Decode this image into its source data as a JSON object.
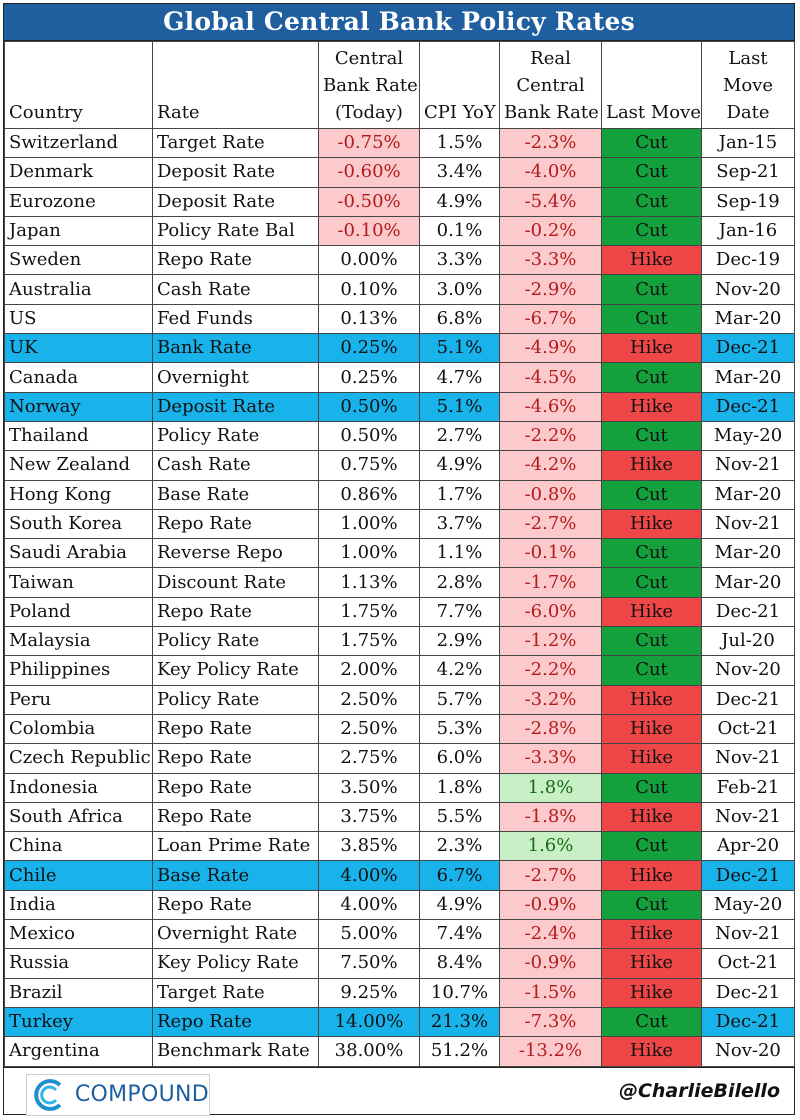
{
  "title": "Global Central Bank Policy Rates",
  "headers": {
    "country": "Country",
    "rate": "Rate",
    "cb_rate": [
      "Central",
      "Bank Rate",
      "(Today)"
    ],
    "cpi": "CPI YoY",
    "real": [
      "Real",
      "Central",
      "Bank Rate"
    ],
    "last_move": "Last Move",
    "date": [
      "Last",
      "Move",
      "Date"
    ]
  },
  "colors": {
    "title_bg": "#1f5fa0",
    "highlight": "#19b3ec",
    "cut": "#14a03d",
    "hike": "#ef4747",
    "negative_bg": "#fcc9cc",
    "positive_bg": "#c9efc7"
  },
  "rows": [
    {
      "country": "Switzerland",
      "rate": "Target Rate",
      "cb_rate": "-0.75%",
      "cpi": "1.5%",
      "real": "-2.3%",
      "move": "Cut",
      "date": "Jan-15"
    },
    {
      "country": "Denmark",
      "rate": "Deposit Rate",
      "cb_rate": "-0.60%",
      "cpi": "3.4%",
      "real": "-4.0%",
      "move": "Cut",
      "date": "Sep-21"
    },
    {
      "country": "Eurozone",
      "rate": "Deposit Rate",
      "cb_rate": "-0.50%",
      "cpi": "4.9%",
      "real": "-5.4%",
      "move": "Cut",
      "date": "Sep-19"
    },
    {
      "country": "Japan",
      "rate": "Policy Rate Bal",
      "cb_rate": "-0.10%",
      "cpi": "0.1%",
      "real": "-0.2%",
      "move": "Cut",
      "date": "Jan-16"
    },
    {
      "country": "Sweden",
      "rate": "Repo Rate",
      "cb_rate": "0.00%",
      "cpi": "3.3%",
      "real": "-3.3%",
      "move": "Hike",
      "date": "Dec-19"
    },
    {
      "country": "Australia",
      "rate": "Cash Rate",
      "cb_rate": "0.10%",
      "cpi": "3.0%",
      "real": "-2.9%",
      "move": "Cut",
      "date": "Nov-20"
    },
    {
      "country": "US",
      "rate": "Fed Funds",
      "cb_rate": "0.13%",
      "cpi": "6.8%",
      "real": "-6.7%",
      "move": "Cut",
      "date": "Mar-20"
    },
    {
      "country": "UK",
      "rate": "Bank Rate",
      "cb_rate": "0.25%",
      "cpi": "5.1%",
      "real": "-4.9%",
      "move": "Hike",
      "date": "Dec-21",
      "highlight": true
    },
    {
      "country": "Canada",
      "rate": "Overnight",
      "cb_rate": "0.25%",
      "cpi": "4.7%",
      "real": "-4.5%",
      "move": "Cut",
      "date": "Mar-20"
    },
    {
      "country": "Norway",
      "rate": "Deposit Rate",
      "cb_rate": "0.50%",
      "cpi": "5.1%",
      "real": "-4.6%",
      "move": "Hike",
      "date": "Dec-21",
      "highlight": true
    },
    {
      "country": "Thailand",
      "rate": "Policy Rate",
      "cb_rate": "0.50%",
      "cpi": "2.7%",
      "real": "-2.2%",
      "move": "Cut",
      "date": "May-20"
    },
    {
      "country": "New Zealand",
      "rate": "Cash Rate",
      "cb_rate": "0.75%",
      "cpi": "4.9%",
      "real": "-4.2%",
      "move": "Hike",
      "date": "Nov-21"
    },
    {
      "country": "Hong Kong",
      "rate": "Base Rate",
      "cb_rate": "0.86%",
      "cpi": "1.7%",
      "real": "-0.8%",
      "move": "Cut",
      "date": "Mar-20"
    },
    {
      "country": "South Korea",
      "rate": "Repo Rate",
      "cb_rate": "1.00%",
      "cpi": "3.7%",
      "real": "-2.7%",
      "move": "Hike",
      "date": "Nov-21"
    },
    {
      "country": "Saudi Arabia",
      "rate": "Reverse Repo",
      "cb_rate": "1.00%",
      "cpi": "1.1%",
      "real": "-0.1%",
      "move": "Cut",
      "date": "Mar-20"
    },
    {
      "country": "Taiwan",
      "rate": "Discount Rate",
      "cb_rate": "1.13%",
      "cpi": "2.8%",
      "real": "-1.7%",
      "move": "Cut",
      "date": "Mar-20"
    },
    {
      "country": "Poland",
      "rate": "Repo Rate",
      "cb_rate": "1.75%",
      "cpi": "7.7%",
      "real": "-6.0%",
      "move": "Hike",
      "date": "Dec-21"
    },
    {
      "country": "Malaysia",
      "rate": "Policy Rate",
      "cb_rate": "1.75%",
      "cpi": "2.9%",
      "real": "-1.2%",
      "move": "Cut",
      "date": "Jul-20"
    },
    {
      "country": "Philippines",
      "rate": "Key Policy Rate",
      "cb_rate": "2.00%",
      "cpi": "4.2%",
      "real": "-2.2%",
      "move": "Cut",
      "date": "Nov-20"
    },
    {
      "country": "Peru",
      "rate": "Policy Rate",
      "cb_rate": "2.50%",
      "cpi": "5.7%",
      "real": "-3.2%",
      "move": "Hike",
      "date": "Dec-21"
    },
    {
      "country": "Colombia",
      "rate": "Repo Rate",
      "cb_rate": "2.50%",
      "cpi": "5.3%",
      "real": "-2.8%",
      "move": "Hike",
      "date": "Oct-21"
    },
    {
      "country": "Czech Republic",
      "rate": "Repo Rate",
      "cb_rate": "2.75%",
      "cpi": "6.0%",
      "real": "-3.3%",
      "move": "Hike",
      "date": "Nov-21"
    },
    {
      "country": "Indonesia",
      "rate": "Repo Rate",
      "cb_rate": "3.50%",
      "cpi": "1.8%",
      "real": "1.8%",
      "move": "Cut",
      "date": "Feb-21"
    },
    {
      "country": "South Africa",
      "rate": "Repo Rate",
      "cb_rate": "3.75%",
      "cpi": "5.5%",
      "real": "-1.8%",
      "move": "Hike",
      "date": "Nov-21"
    },
    {
      "country": "China",
      "rate": "Loan Prime Rate",
      "cb_rate": "3.85%",
      "cpi": "2.3%",
      "real": "1.6%",
      "move": "Cut",
      "date": "Apr-20"
    },
    {
      "country": "Chile",
      "rate": "Base Rate",
      "cb_rate": "4.00%",
      "cpi": "6.7%",
      "real": "-2.7%",
      "move": "Hike",
      "date": "Dec-21",
      "highlight": true
    },
    {
      "country": "India",
      "rate": "Repo Rate",
      "cb_rate": "4.00%",
      "cpi": "4.9%",
      "real": "-0.9%",
      "move": "Cut",
      "date": "May-20"
    },
    {
      "country": "Mexico",
      "rate": "Overnight Rate",
      "cb_rate": "5.00%",
      "cpi": "7.4%",
      "real": "-2.4%",
      "move": "Hike",
      "date": "Nov-21"
    },
    {
      "country": "Russia",
      "rate": "Key Policy Rate",
      "cb_rate": "7.50%",
      "cpi": "8.4%",
      "real": "-0.9%",
      "move": "Hike",
      "date": "Oct-21"
    },
    {
      "country": "Brazil",
      "rate": "Target Rate",
      "cb_rate": "9.25%",
      "cpi": "10.7%",
      "real": "-1.5%",
      "move": "Hike",
      "date": "Dec-21"
    },
    {
      "country": "Turkey",
      "rate": "Repo Rate",
      "cb_rate": "14.00%",
      "cpi": "21.3%",
      "real": "-7.3%",
      "move": "Cut",
      "date": "Dec-21",
      "highlight": true
    },
    {
      "country": "Argentina",
      "rate": "Benchmark Rate",
      "cb_rate": "38.00%",
      "cpi": "51.2%",
      "real": "-13.2%",
      "move": "Hike",
      "date": "Nov-20"
    }
  ],
  "footer": {
    "logo_text": "COMPOUND",
    "logo_icon": "compound-logo-icon",
    "handle": "@CharlieBilello"
  }
}
